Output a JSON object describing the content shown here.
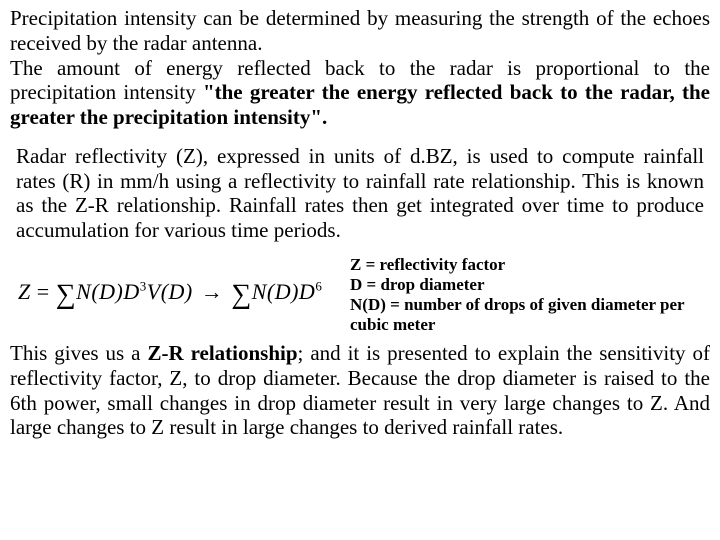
{
  "colors": {
    "background": "#ffffff",
    "text": "#000000"
  },
  "typography": {
    "body_font": "Times New Roman",
    "body_size_pt": 16,
    "legend_size_pt": 13,
    "legend_weight": "bold"
  },
  "para1": {
    "plain_a": "Precipitation intensity can be determined by measuring the strength of the echoes received by the radar antenna.",
    "plain_b": "The amount of energy reflected back to the radar is proportional to the precipitation intensity ",
    "bold": "\"the greater the energy reflected back to the radar, the greater the precipitation intensity\"."
  },
  "para2": "Radar reflectivity (Z), expressed in units of d.BZ, is used to compute rainfall rates (R) in mm/h using a reflectivity to rainfall rate relationship. This is known as the Z-R relationship. Rainfall rates then get integrated over time to produce accumulation for various time periods.",
  "formula": {
    "lhs": "Z",
    "eq": " = ",
    "sum1_a": "N(D)D",
    "sup1": "3",
    "sum1_b": "V(D)",
    "arrow": " → ",
    "sum2_a": "N(D)D",
    "sup2": "6"
  },
  "legend": {
    "l1": "Z = reflectivity factor",
    "l2": "D = drop diameter",
    "l3": "N(D) = number of drops of given diameter per cubic meter"
  },
  "para3": {
    "a": "This gives us a ",
    "bold": "Z-R relationship",
    "b": "; and it is presented to explain the sensitivity of reflectivity factor, Z, to drop diameter. Because the drop diameter is raised to the 6",
    "th": "th",
    "c": " power, small changes in drop diameter result in very large changes to Z. And large changes to Z result in large changes to derived rainfall rates."
  }
}
